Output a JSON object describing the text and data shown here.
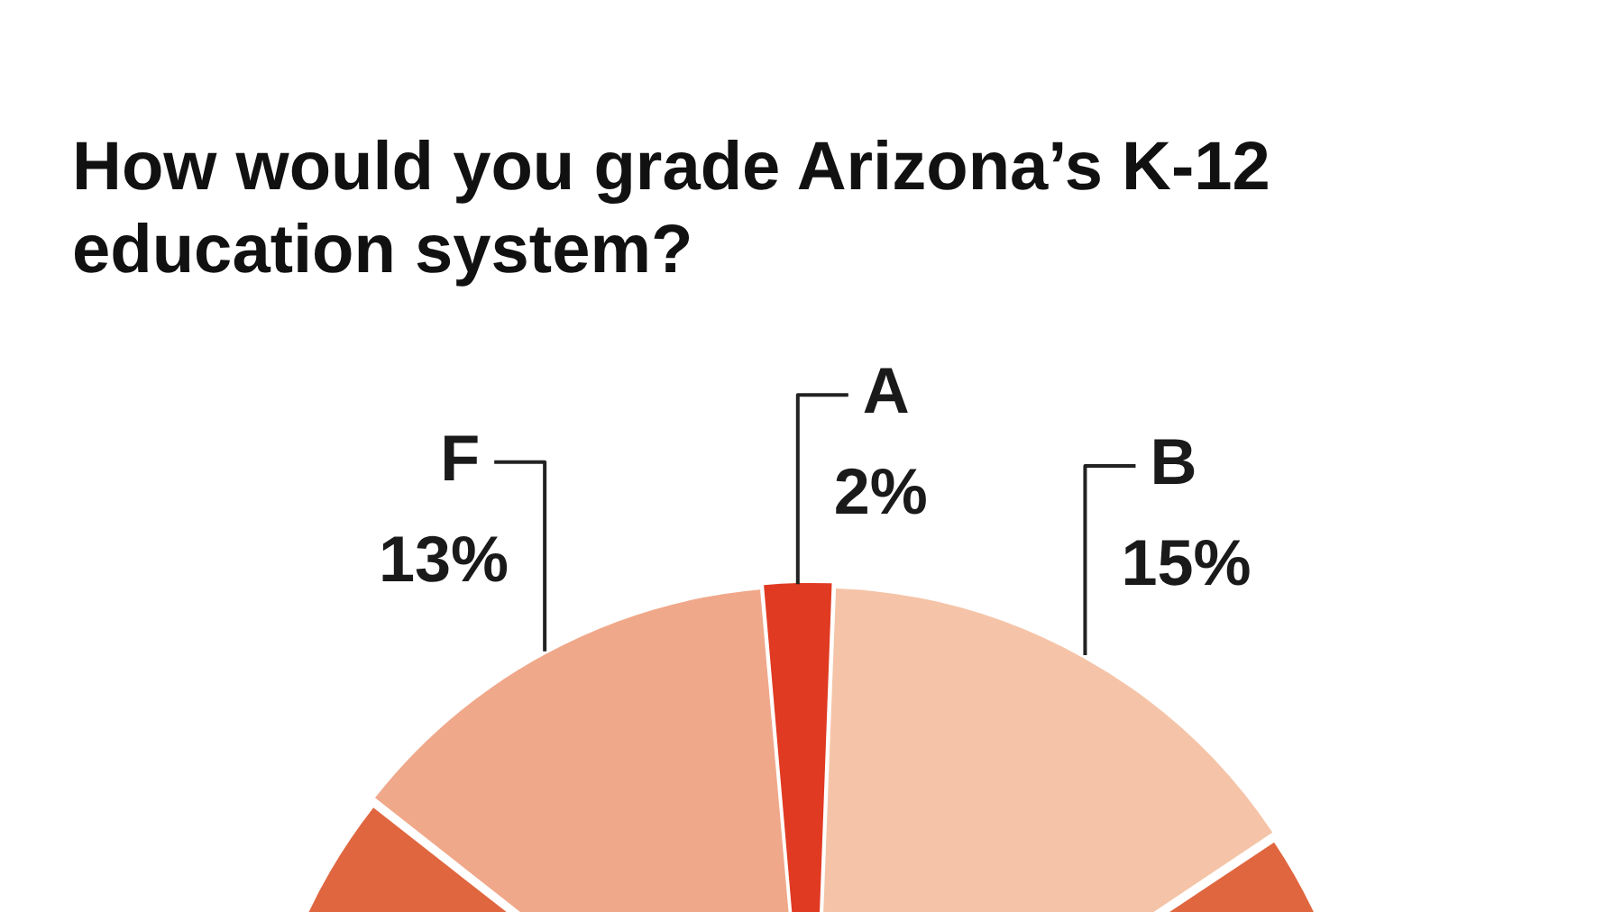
{
  "chart_data": {
    "type": "pie",
    "title": "How would you grade Arizona’s K-12 education system?",
    "categories": [
      "A",
      "B",
      null,
      "F"
    ],
    "values": [
      2,
      15,
      70,
      13
    ],
    "colors": [
      "#e03a22",
      "#f5c4a8",
      "#e0663f",
      "#f0a88a"
    ],
    "value_labels": [
      "2%",
      "15%",
      null,
      "13%"
    ],
    "legend": false
  }
}
